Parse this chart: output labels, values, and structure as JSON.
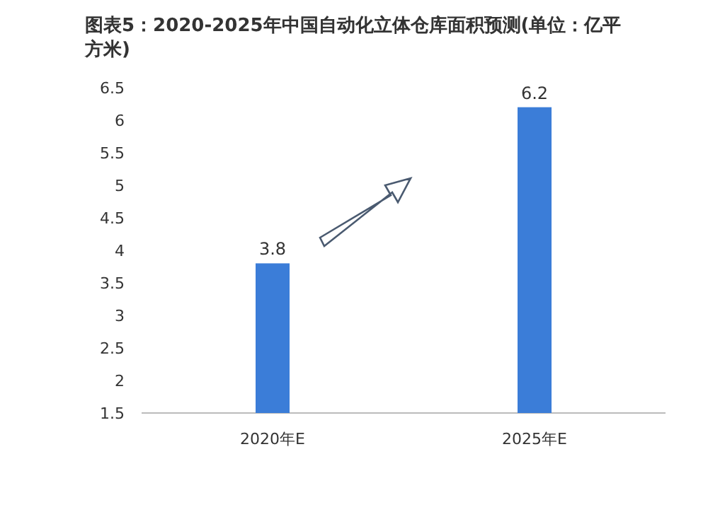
{
  "chart_data": {
    "type": "bar",
    "title": "图表5：2020-2025年中国自动化立体仓库面积预测(单位：亿平方米)",
    "categories": [
      "2020年E",
      "2025年E"
    ],
    "values": [
      3.8,
      6.2
    ],
    "color": "#3b7dd8",
    "ylim": [
      1.5,
      6.5
    ],
    "yticks": [
      1.5,
      2,
      2.5,
      3,
      3.5,
      4,
      4.5,
      5,
      5.5,
      6,
      6.5
    ],
    "data_labels": true
  }
}
